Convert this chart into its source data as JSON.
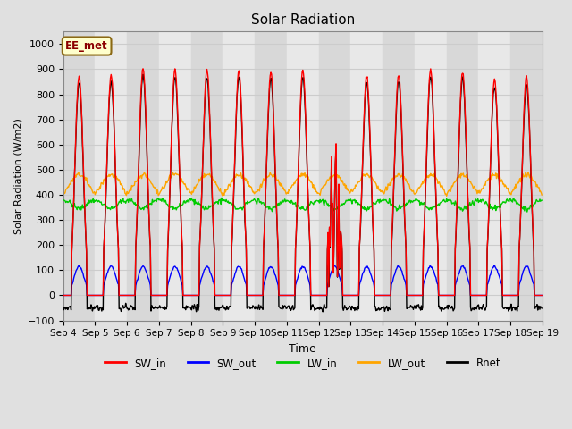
{
  "title": "Solar Radiation",
  "ylabel": "Solar Radiation (W/m2)",
  "xlabel": "Time",
  "ylim": [
    -100,
    1050
  ],
  "n_days": 15,
  "annotation_text": "EE_met",
  "annotation_bg": "#FFFFCC",
  "annotation_border": "#8B6914",
  "series": {
    "SW_in": {
      "color": "#FF0000",
      "lw": 1.0
    },
    "SW_out": {
      "color": "#0000FF",
      "lw": 1.0
    },
    "LW_in": {
      "color": "#00CC00",
      "lw": 1.0
    },
    "LW_out": {
      "color": "#FFA500",
      "lw": 1.0
    },
    "Rnet": {
      "color": "#000000",
      "lw": 1.0
    }
  },
  "tick_labels": [
    "Sep 4",
    "Sep 5",
    "Sep 6",
    "Sep 7",
    "Sep 8",
    "Sep 9",
    "Sep 10",
    "Sep 11",
    "Sep 12",
    "Sep 13",
    "Sep 14",
    "Sep 15",
    "Sep 16",
    "Sep 17",
    "Sep 18",
    "Sep 19"
  ],
  "yticks": [
    -100,
    0,
    100,
    200,
    300,
    400,
    500,
    600,
    700,
    800,
    900,
    1000
  ],
  "grid_color": "#CCCCCC",
  "band_light": "#E8E8E8",
  "band_dark": "#D8D8D8",
  "fig_bg": "#E0E0E0",
  "sw_in_peaks": [
    875,
    880,
    905,
    900,
    900,
    895,
    890,
    895,
    865,
    875,
    880,
    900,
    890,
    860,
    870
  ],
  "lw_in_night": 380,
  "lw_in_day_dip": 40,
  "lw_out_base": 380,
  "lw_out_peak": 100,
  "sw_out_peak": 115,
  "rnet_night": -50,
  "cloud_day": 8,
  "figsize": [
    6.4,
    4.8
  ],
  "dpi": 100
}
